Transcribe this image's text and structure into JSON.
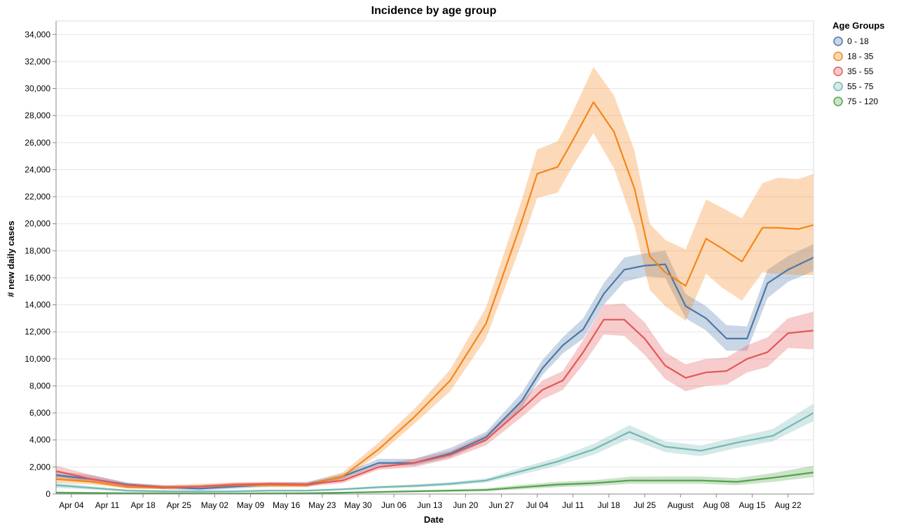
{
  "chart_data": {
    "type": "area",
    "title": "Incidence by age group",
    "xlabel": "Date",
    "ylabel": "# new daily cases",
    "ylim": [
      0,
      35000
    ],
    "yticks": [
      0,
      2000,
      4000,
      6000,
      8000,
      10000,
      12000,
      14000,
      16000,
      18000,
      20000,
      22000,
      24000,
      26000,
      28000,
      30000,
      32000,
      34000
    ],
    "ytick_labels": [
      "0",
      "2,000",
      "4,000",
      "6,000",
      "8,000",
      "10,000",
      "12,000",
      "14,000",
      "16,000",
      "18,000",
      "20,000",
      "22,000",
      "24,000",
      "26,000",
      "28,000",
      "30,000",
      "32,000",
      "34,000"
    ],
    "xlim": [
      "2021-04-01",
      "2021-08-27"
    ],
    "xticks": [
      "2021-04-04",
      "2021-04-11",
      "2021-04-18",
      "2021-04-25",
      "2021-05-02",
      "2021-05-09",
      "2021-05-16",
      "2021-05-23",
      "2021-05-30",
      "2021-06-06",
      "2021-06-13",
      "2021-06-20",
      "2021-06-27",
      "2021-07-04",
      "2021-07-11",
      "2021-07-18",
      "2021-07-25",
      "2021-08-01",
      "2021-08-08",
      "2021-08-15",
      "2021-08-22"
    ],
    "xtick_labels": [
      "Apr 04",
      "Apr 11",
      "Apr 18",
      "Apr 25",
      "May 02",
      "May 09",
      "May 16",
      "May 23",
      "May 30",
      "Jun 06",
      "Jun 13",
      "Jun 20",
      "Jun 27",
      "Jul 04",
      "Jul 11",
      "Jul 18",
      "Jul 25",
      "August",
      "Aug 08",
      "Aug 15",
      "Aug 22"
    ],
    "grid": true,
    "legend": {
      "title": "Age Groups",
      "position": "right"
    },
    "series": [
      {
        "name": "0 - 18",
        "color": "#4c78a8",
        "x": [
          "2021-04-01",
          "2021-04-08",
          "2021-04-15",
          "2021-04-22",
          "2021-04-29",
          "2021-05-06",
          "2021-05-13",
          "2021-05-20",
          "2021-05-27",
          "2021-06-03",
          "2021-06-10",
          "2021-06-17",
          "2021-06-24",
          "2021-07-01",
          "2021-07-05",
          "2021-07-09",
          "2021-07-13",
          "2021-07-17",
          "2021-07-21",
          "2021-07-25",
          "2021-07-29",
          "2021-08-02",
          "2021-08-06",
          "2021-08-10",
          "2021-08-14",
          "2021-08-18",
          "2021-08-22",
          "2021-08-27"
        ],
        "y": [
          1400,
          1100,
          700,
          500,
          400,
          550,
          700,
          700,
          1300,
          2300,
          2300,
          3000,
          4200,
          6900,
          9300,
          11000,
          12200,
          14800,
          16600,
          16900,
          17000,
          13900,
          13000,
          11500,
          11500,
          15600,
          16600,
          17500
        ],
        "lower": [
          1100,
          900,
          550,
          350,
          250,
          400,
          550,
          550,
          1100,
          2100,
          2100,
          2700,
          3900,
          6400,
          8800,
          10400,
          11500,
          14000,
          15700,
          16100,
          16000,
          13000,
          12100,
          10600,
          10600,
          14500,
          15700,
          16500
        ],
        "upper": [
          1700,
          1400,
          850,
          650,
          550,
          700,
          850,
          900,
          1500,
          2600,
          2600,
          3400,
          4600,
          7500,
          9900,
          11600,
          13000,
          15600,
          17500,
          17800,
          18000,
          14800,
          13900,
          12500,
          12400,
          16600,
          17600,
          18500
        ]
      },
      {
        "name": "18 - 35",
        "color": "#f58518",
        "x": [
          "2021-04-01",
          "2021-04-08",
          "2021-04-15",
          "2021-04-22",
          "2021-04-29",
          "2021-05-06",
          "2021-05-13",
          "2021-05-20",
          "2021-05-27",
          "2021-06-03",
          "2021-06-10",
          "2021-06-17",
          "2021-06-24",
          "2021-07-01",
          "2021-07-04",
          "2021-07-08",
          "2021-07-11",
          "2021-07-15",
          "2021-07-19",
          "2021-07-23",
          "2021-07-26",
          "2021-07-29",
          "2021-08-02",
          "2021-08-06",
          "2021-08-09",
          "2021-08-13",
          "2021-08-17",
          "2021-08-20",
          "2021-08-24",
          "2021-08-27"
        ],
        "y": [
          1100,
          900,
          500,
          450,
          550,
          650,
          650,
          650,
          1300,
          3300,
          5700,
          8400,
          12600,
          20200,
          23700,
          24200,
          26200,
          29000,
          26800,
          22600,
          17600,
          16400,
          15400,
          18900,
          18200,
          17200,
          19700,
          19700,
          19600,
          19900
        ],
        "lower": [
          850,
          700,
          400,
          350,
          400,
          500,
          500,
          500,
          1100,
          2900,
          5200,
          7600,
          11500,
          18600,
          21900,
          22300,
          24300,
          26700,
          24100,
          19800,
          15100,
          13900,
          12800,
          16300,
          15300,
          14300,
          16400,
          16300,
          16200,
          16200
        ],
        "upper": [
          1400,
          1200,
          700,
          650,
          750,
          850,
          850,
          850,
          1600,
          3800,
          6300,
          9200,
          13800,
          21800,
          25500,
          26100,
          28300,
          31600,
          29500,
          25400,
          20000,
          18800,
          18100,
          21800,
          21200,
          20400,
          23000,
          23400,
          23300,
          23700
        ]
      },
      {
        "name": "35 - 55",
        "color": "#e45756",
        "x": [
          "2021-04-01",
          "2021-04-08",
          "2021-04-15",
          "2021-04-22",
          "2021-04-29",
          "2021-05-06",
          "2021-05-13",
          "2021-05-20",
          "2021-05-27",
          "2021-06-03",
          "2021-06-10",
          "2021-06-17",
          "2021-06-24",
          "2021-07-01",
          "2021-07-05",
          "2021-07-09",
          "2021-07-13",
          "2021-07-17",
          "2021-07-21",
          "2021-07-25",
          "2021-07-29",
          "2021-08-02",
          "2021-08-06",
          "2021-08-10",
          "2021-08-14",
          "2021-08-18",
          "2021-08-22",
          "2021-08-27"
        ],
        "y": [
          1700,
          1100,
          650,
          500,
          550,
          700,
          750,
          700,
          1000,
          2000,
          2300,
          2900,
          4000,
          6300,
          7700,
          8400,
          10500,
          12900,
          12900,
          11500,
          9500,
          8600,
          9000,
          9100,
          10000,
          10500,
          11900,
          12100
        ],
        "lower": [
          1300,
          850,
          500,
          380,
          420,
          550,
          600,
          550,
          800,
          1800,
          2000,
          2600,
          3600,
          5700,
          7000,
          7700,
          9600,
          11800,
          11700,
          10300,
          8500,
          7600,
          8000,
          8100,
          9000,
          9400,
          10800,
          10700
        ],
        "upper": [
          2100,
          1400,
          800,
          620,
          680,
          850,
          900,
          850,
          1200,
          2200,
          2600,
          3200,
          4400,
          6900,
          8400,
          9100,
          11400,
          14000,
          14100,
          12700,
          10500,
          9600,
          10000,
          10100,
          11000,
          11600,
          13000,
          13500
        ]
      },
      {
        "name": "55 - 75",
        "color": "#72b7b2",
        "x": [
          "2021-04-01",
          "2021-04-08",
          "2021-04-15",
          "2021-04-22",
          "2021-04-29",
          "2021-05-06",
          "2021-05-13",
          "2021-05-20",
          "2021-05-27",
          "2021-06-03",
          "2021-06-10",
          "2021-06-17",
          "2021-06-24",
          "2021-07-01",
          "2021-07-08",
          "2021-07-15",
          "2021-07-22",
          "2021-07-29",
          "2021-08-05",
          "2021-08-12",
          "2021-08-19",
          "2021-08-27"
        ],
        "y": [
          650,
          450,
          250,
          200,
          180,
          200,
          250,
          250,
          350,
          500,
          600,
          750,
          1000,
          1700,
          2400,
          3300,
          4600,
          3500,
          3200,
          3800,
          4300,
          6000
        ],
        "lower": [
          450,
          320,
          170,
          130,
          120,
          140,
          180,
          180,
          270,
          400,
          480,
          620,
          850,
          1450,
          2100,
          2900,
          4100,
          3100,
          2800,
          3400,
          3900,
          5400
        ],
        "upper": [
          850,
          580,
          330,
          270,
          240,
          260,
          320,
          320,
          430,
          600,
          720,
          880,
          1150,
          1950,
          2700,
          3700,
          5100,
          3900,
          3600,
          4200,
          4800,
          6700
        ]
      },
      {
        "name": "75 - 120",
        "color": "#54a24b",
        "x": [
          "2021-04-01",
          "2021-04-08",
          "2021-04-15",
          "2021-04-22",
          "2021-04-29",
          "2021-05-06",
          "2021-05-13",
          "2021-05-20",
          "2021-05-27",
          "2021-06-03",
          "2021-06-10",
          "2021-06-17",
          "2021-06-24",
          "2021-07-01",
          "2021-07-08",
          "2021-07-15",
          "2021-07-22",
          "2021-07-29",
          "2021-08-05",
          "2021-08-12",
          "2021-08-19",
          "2021-08-27"
        ],
        "y": [
          100,
          80,
          60,
          50,
          40,
          40,
          50,
          60,
          100,
          150,
          200,
          250,
          300,
          500,
          700,
          800,
          1000,
          1000,
          1000,
          900,
          1200,
          1600
        ],
        "lower": [
          40,
          30,
          20,
          15,
          10,
          10,
          15,
          20,
          50,
          90,
          130,
          170,
          200,
          350,
          500,
          600,
          750,
          750,
          750,
          650,
          900,
          1250
        ],
        "upper": [
          180,
          150,
          110,
          90,
          80,
          80,
          90,
          110,
          160,
          220,
          280,
          340,
          420,
          680,
          900,
          1020,
          1280,
          1300,
          1300,
          1180,
          1550,
          2100
        ]
      }
    ]
  }
}
